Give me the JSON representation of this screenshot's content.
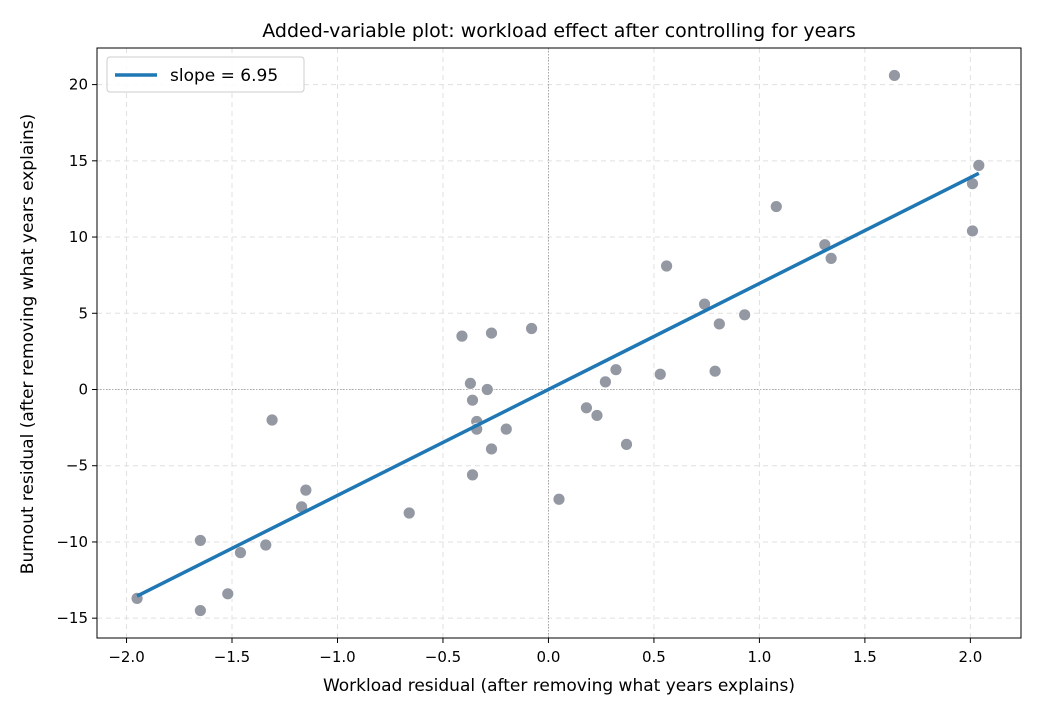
{
  "chart_data": {
    "type": "scatter",
    "title": "Added-variable plot: workload effect after controlling for years",
    "xlabel": "Workload residual  (after removing what years explains)",
    "ylabel": "Burnout residual  (after removing what years explains)",
    "xlim": [
      -2.14,
      2.24
    ],
    "ylim": [
      -16.3,
      22.4
    ],
    "xticks": [
      -2.0,
      -1.5,
      -1.0,
      -0.5,
      0.0,
      0.5,
      1.0,
      1.5,
      2.0
    ],
    "xtick_labels": [
      "−2.0",
      "−1.5",
      "−1.0",
      "−0.5",
      "0.0",
      "0.5",
      "1.0",
      "1.5",
      "2.0"
    ],
    "yticks": [
      -15,
      -10,
      -5,
      0,
      5,
      10,
      15,
      20
    ],
    "ytick_labels": [
      "−15",
      "−10",
      "−5",
      "0",
      "5",
      "10",
      "15",
      "20"
    ],
    "grid": true,
    "reference_lines": {
      "x": 0,
      "y": 0
    },
    "legend_position": "top-left",
    "colors": {
      "points": "#9498a3",
      "fit_line": "#1f77b4",
      "grid": "#e0e0e0",
      "reference": "#999999"
    },
    "series": [
      {
        "type": "scatter",
        "points": [
          [
            -1.95,
            -13.7
          ],
          [
            -1.65,
            -9.9
          ],
          [
            -1.65,
            -14.5
          ],
          [
            -1.52,
            -13.4
          ],
          [
            -1.46,
            -10.7
          ],
          [
            -1.34,
            -10.2
          ],
          [
            -1.31,
            -2.0
          ],
          [
            -1.17,
            -7.7
          ],
          [
            -1.15,
            -6.6
          ],
          [
            -0.66,
            -8.1
          ],
          [
            -0.41,
            3.5
          ],
          [
            -0.37,
            0.4
          ],
          [
            -0.36,
            -5.6
          ],
          [
            -0.36,
            -0.7
          ],
          [
            -0.34,
            -2.1
          ],
          [
            -0.34,
            -2.6
          ],
          [
            -0.29,
            0.0
          ],
          [
            -0.27,
            3.7
          ],
          [
            -0.27,
            -3.9
          ],
          [
            -0.2,
            -2.6
          ],
          [
            -0.08,
            4.0
          ],
          [
            0.05,
            -7.2
          ],
          [
            0.18,
            -1.2
          ],
          [
            0.23,
            -1.7
          ],
          [
            0.27,
            0.5
          ],
          [
            0.32,
            1.3
          ],
          [
            0.37,
            -3.6
          ],
          [
            0.53,
            1.0
          ],
          [
            0.56,
            8.1
          ],
          [
            0.74,
            5.6
          ],
          [
            0.79,
            1.2
          ],
          [
            0.81,
            4.3
          ],
          [
            0.93,
            4.9
          ],
          [
            1.08,
            12.0
          ],
          [
            1.31,
            9.5
          ],
          [
            1.34,
            8.6
          ],
          [
            1.64,
            20.6
          ],
          [
            2.01,
            10.4
          ],
          [
            2.01,
            13.5
          ],
          [
            2.04,
            14.7
          ]
        ]
      },
      {
        "type": "line",
        "name": "slope = 6.95",
        "x": [
          -1.95,
          2.04
        ],
        "y": [
          -13.55,
          14.18
        ]
      }
    ]
  }
}
